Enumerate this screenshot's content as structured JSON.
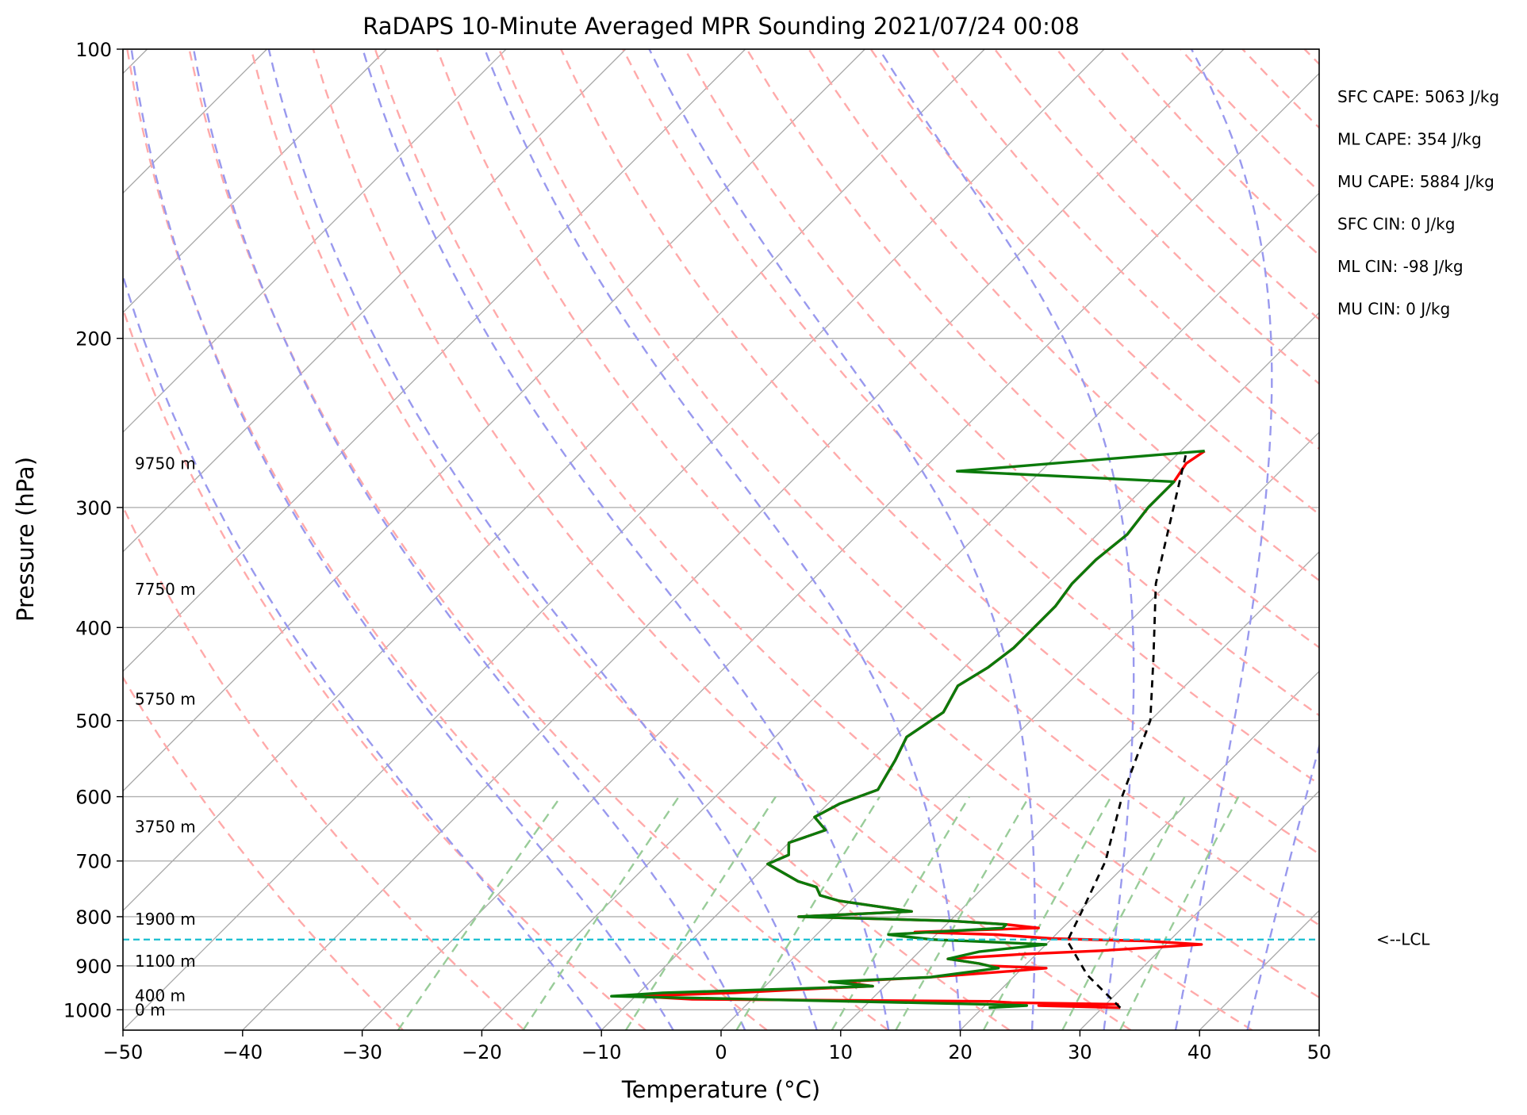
{
  "chart_data": {
    "type": "line",
    "title": "RaDAPS 10-Minute Averaged MPR Sounding 2021/07/24 00:08",
    "xlabel": "Temperature (°C)",
    "ylabel": "Pressure (hPa)",
    "xlim": [
      -50,
      50
    ],
    "ylim": [
      1050,
      100
    ],
    "y_scale": "log",
    "x_ticks": [
      "−50",
      "−40",
      "−30",
      "−20",
      "−10",
      "0",
      "10",
      "20",
      "30",
      "40",
      "50"
    ],
    "y_ticks": [
      {
        "p": 100,
        "label": "100"
      },
      {
        "p": 200,
        "label": "200"
      },
      {
        "p": 300,
        "label": "300"
      },
      {
        "p": 400,
        "label": "400"
      },
      {
        "p": 500,
        "label": "500"
      },
      {
        "p": 600,
        "label": "600"
      },
      {
        "p": 700,
        "label": "700"
      },
      {
        "p": 800,
        "label": "800"
      },
      {
        "p": 900,
        "label": "900"
      },
      {
        "p": 1000,
        "label": "1000"
      }
    ],
    "grid": true,
    "height_labels": [
      {
        "p": 1000,
        "label": "0 m"
      },
      {
        "p": 967,
        "label": "400 m"
      },
      {
        "p": 890,
        "label": "1100 m"
      },
      {
        "p": 805,
        "label": "1900 m"
      },
      {
        "p": 645,
        "label": "3750 m"
      },
      {
        "p": 475,
        "label": "5750 m"
      },
      {
        "p": 365,
        "label": "7750 m"
      },
      {
        "p": 270,
        "label": "9750 m"
      }
    ],
    "lcl": {
      "p": 845,
      "label": "<--LCL",
      "color": "#17becf"
    },
    "stats": [
      "SFC CAPE: 5063 J/kg",
      "ML CAPE: 354 J/kg",
      "MU CAPE: 5884 J/kg",
      "SFC CIN: 0 J/kg",
      "ML CIN: -98 J/kg",
      "MU CIN: 0 J/kg"
    ],
    "series": [
      {
        "role": "temperature",
        "color": "#ff0000",
        "points": [
          [
            31.5,
            995
          ],
          [
            24.5,
            990
          ],
          [
            31,
            987
          ],
          [
            22,
            983
          ],
          [
            20,
            980
          ],
          [
            -5,
            975
          ],
          [
            -10,
            968
          ],
          [
            -2,
            960
          ],
          [
            5,
            950
          ],
          [
            9,
            945
          ],
          [
            6,
            935
          ],
          [
            13,
            925
          ],
          [
            20,
            910
          ],
          [
            22,
            905
          ],
          [
            17,
            900
          ],
          [
            16,
            895
          ],
          [
            13,
            885
          ],
          [
            19,
            875
          ],
          [
            25,
            868
          ],
          [
            33,
            855
          ],
          [
            28,
            848
          ],
          [
            20,
            843
          ],
          [
            15,
            835
          ],
          [
            8,
            830
          ],
          [
            18,
            822
          ],
          [
            15,
            815
          ],
          [
            10,
            808
          ],
          [
            -3,
            800
          ],
          [
            6,
            790
          ],
          [
            -1,
            770
          ],
          [
            -3,
            760
          ],
          [
            -4,
            745
          ],
          [
            -6,
            735
          ],
          [
            -10,
            705
          ],
          [
            -9,
            690
          ],
          [
            -10,
            670
          ],
          [
            -8,
            650
          ],
          [
            -10,
            630
          ],
          [
            -9,
            610
          ],
          [
            -7,
            590
          ],
          [
            -7.5,
            570
          ],
          [
            -8,
            550
          ],
          [
            -9,
            520
          ],
          [
            -8,
            490
          ],
          [
            -9,
            460
          ],
          [
            -8,
            440
          ],
          [
            -7.5,
            420
          ],
          [
            -7.5,
            400
          ],
          [
            -7.5,
            380
          ],
          [
            -8,
            360
          ],
          [
            -8,
            340
          ],
          [
            -7.5,
            320
          ],
          [
            -8,
            300
          ],
          [
            -8,
            282
          ],
          [
            -8.5,
            270
          ],
          [
            -8,
            262
          ]
        ]
      },
      {
        "role": "dewpoint",
        "color": "#0b7a0b",
        "points": [
          [
            20.5,
            995
          ],
          [
            23.5,
            990
          ],
          [
            20,
            987
          ],
          [
            -12,
            968
          ],
          [
            -8,
            960
          ],
          [
            -2,
            955
          ],
          [
            9,
            945
          ],
          [
            5,
            935
          ],
          [
            13,
            925
          ],
          [
            18,
            905
          ],
          [
            16,
            895
          ],
          [
            13,
            885
          ],
          [
            15,
            870
          ],
          [
            20,
            855
          ],
          [
            10,
            845
          ],
          [
            6,
            835
          ],
          [
            15,
            822
          ],
          [
            15,
            815
          ],
          [
            10,
            808
          ],
          [
            -3,
            800
          ],
          [
            6,
            790
          ],
          [
            -1,
            770
          ],
          [
            -3,
            760
          ],
          [
            -4,
            745
          ],
          [
            -6,
            735
          ],
          [
            -10,
            705
          ],
          [
            -9,
            690
          ],
          [
            -10,
            670
          ],
          [
            -8,
            650
          ],
          [
            -10,
            630
          ],
          [
            -9,
            610
          ],
          [
            -7,
            590
          ],
          [
            -7.5,
            570
          ],
          [
            -8,
            550
          ],
          [
            -9,
            520
          ],
          [
            -8,
            490
          ],
          [
            -9,
            460
          ],
          [
            -8,
            440
          ],
          [
            -7.5,
            420
          ],
          [
            -7.5,
            400
          ],
          [
            -7.5,
            380
          ],
          [
            -8,
            360
          ],
          [
            -8,
            340
          ],
          [
            -7.5,
            320
          ],
          [
            -8,
            300
          ],
          [
            -8,
            282
          ],
          [
            -27,
            275
          ],
          [
            -8,
            262
          ]
        ]
      },
      {
        "role": "parcel",
        "color": "#000000",
        "points": [
          [
            31.5,
            995
          ],
          [
            26,
            920
          ],
          [
            21.5,
            848
          ],
          [
            20,
            780
          ],
          [
            18,
            700
          ],
          [
            14,
            600
          ],
          [
            10,
            500
          ],
          [
            5,
            430
          ],
          [
            -1,
            360
          ],
          [
            -5,
            310
          ],
          [
            -9.5,
            262
          ]
        ]
      }
    ],
    "colors": {
      "isotherm": "#a8a8a8",
      "dry_adiabat": "#ffaaaa",
      "moist_adiabat": "#9999ee",
      "mixing_ratio": "#99cc99",
      "grid": "#b0b0b0"
    }
  }
}
